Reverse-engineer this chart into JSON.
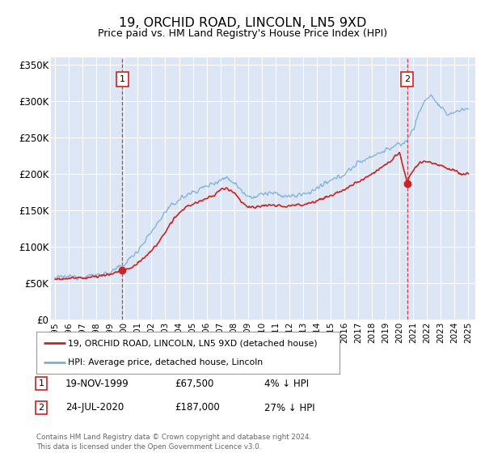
{
  "title": "19, ORCHID ROAD, LINCOLN, LN5 9XD",
  "subtitle": "Price paid vs. HM Land Registry's House Price Index (HPI)",
  "ylabel_ticks": [
    "£0",
    "£50K",
    "£100K",
    "£150K",
    "£200K",
    "£250K",
    "£300K",
    "£350K"
  ],
  "ytick_values": [
    0,
    50000,
    100000,
    150000,
    200000,
    250000,
    300000,
    350000
  ],
  "ylim": [
    0,
    360000
  ],
  "xlim_start": 1994.7,
  "xlim_end": 2025.5,
  "background_color": "#dce6f5",
  "fig_bg_color": "#ffffff",
  "grid_color": "#ffffff",
  "hpi_color": "#7bafd4",
  "price_color": "#cc2222",
  "sale1_date": 1999.88,
  "sale1_price": 67500,
  "sale2_date": 2020.55,
  "sale2_price": 187000,
  "legend_label1": "19, ORCHID ROAD, LINCOLN, LN5 9XD (detached house)",
  "legend_label2": "HPI: Average price, detached house, Lincoln",
  "note1_label": "1",
  "note1_date": "19-NOV-1999",
  "note1_price": "£67,500",
  "note1_pct": "4% ↓ HPI",
  "note2_label": "2",
  "note2_date": "24-JUL-2020",
  "note2_price": "£187,000",
  "note2_pct": "27% ↓ HPI",
  "footer": "Contains HM Land Registry data © Crown copyright and database right 2024.\nThis data is licensed under the Open Government Licence v3.0.",
  "xtick_years": [
    1995,
    1996,
    1997,
    1998,
    1999,
    2000,
    2001,
    2002,
    2003,
    2004,
    2005,
    2006,
    2007,
    2008,
    2009,
    2010,
    2011,
    2012,
    2013,
    2014,
    2015,
    2016,
    2017,
    2018,
    2019,
    2020,
    2021,
    2022,
    2023,
    2024,
    2025
  ],
  "hpi_base_x": [
    1995.0,
    1996.0,
    1997.0,
    1998.0,
    1999.0,
    2000.0,
    2001.0,
    2002.0,
    2003.0,
    2004.0,
    2005.0,
    2006.0,
    2007.0,
    2007.5,
    2008.0,
    2008.5,
    2009.0,
    2009.5,
    2010.0,
    2010.5,
    2011.0,
    2011.5,
    2012.0,
    2012.5,
    2013.0,
    2013.5,
    2014.0,
    2015.0,
    2016.0,
    2017.0,
    2017.5,
    2018.0,
    2018.5,
    2019.0,
    2019.5,
    2020.0,
    2020.5,
    2021.0,
    2021.3,
    2021.6,
    2022.0,
    2022.3,
    2022.6,
    2023.0,
    2023.5,
    2024.0,
    2024.5,
    2025.0
  ],
  "hpi_base_y": [
    57000,
    58500,
    59000,
    61000,
    64000,
    75000,
    95000,
    120000,
    148000,
    165000,
    175000,
    183000,
    192000,
    195000,
    188000,
    178000,
    170000,
    168000,
    172000,
    174000,
    172000,
    170000,
    169000,
    170000,
    172000,
    175000,
    180000,
    190000,
    200000,
    215000,
    220000,
    225000,
    228000,
    233000,
    237000,
    240000,
    245000,
    262000,
    278000,
    292000,
    305000,
    308000,
    300000,
    290000,
    282000,
    285000,
    288000,
    290000
  ],
  "price_base_x": [
    1995.0,
    1996.0,
    1997.0,
    1998.0,
    1999.0,
    1999.88,
    2000.5,
    2001.5,
    2002.5,
    2003.5,
    2004.5,
    2005.5,
    2006.5,
    2007.0,
    2007.5,
    2008.0,
    2008.5,
    2009.0,
    2009.5,
    2010.0,
    2011.0,
    2012.0,
    2013.0,
    2014.0,
    2015.0,
    2016.0,
    2017.0,
    2018.0,
    2019.0,
    2019.5,
    2020.0,
    2020.55,
    2020.7,
    2021.0,
    2021.5,
    2022.0,
    2022.5,
    2023.0,
    2023.5,
    2024.0,
    2024.5
  ],
  "price_base_y": [
    55000,
    56500,
    57000,
    59000,
    62000,
    67500,
    70000,
    85000,
    105000,
    135000,
    155000,
    162000,
    170000,
    178000,
    180000,
    175000,
    162000,
    155000,
    153000,
    157000,
    156000,
    156000,
    158000,
    163000,
    170000,
    178000,
    190000,
    200000,
    213000,
    220000,
    230000,
    187000,
    195000,
    205000,
    215000,
    218000,
    215000,
    212000,
    208000,
    205000,
    200000
  ]
}
